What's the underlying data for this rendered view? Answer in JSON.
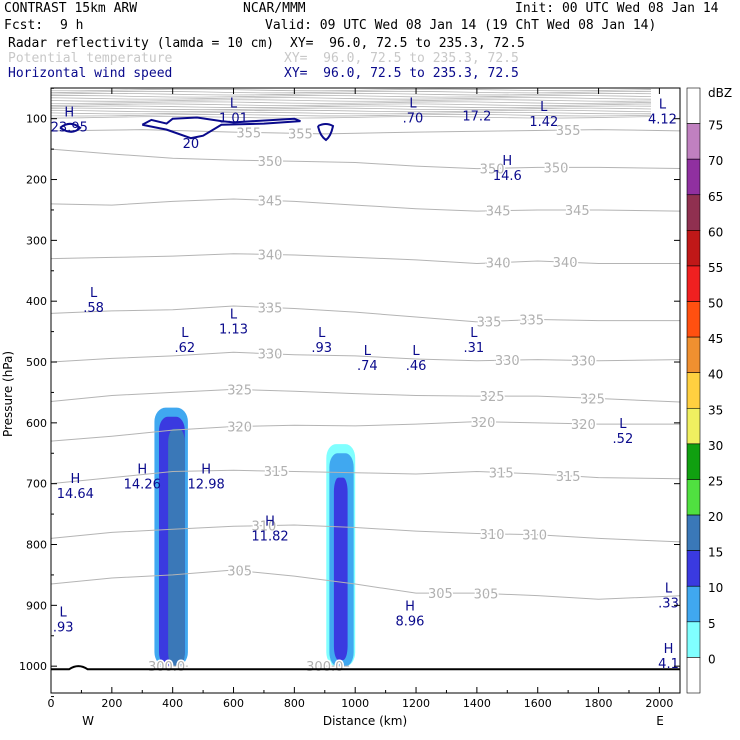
{
  "header": {
    "model": "CONTRAST 15km ARW",
    "center": "NCAR/MMM",
    "init": "Init: 00 UTC Wed 08 Jan 14",
    "fcst_label": "Fcst:",
    "fcst_value": "9 h",
    "valid": "Valid: 09 UTC Wed 08 Jan 14 (19 ChT Wed 08 Jan 14)",
    "fields": [
      {
        "name": "Radar reflectivity (lamda = 10 cm)",
        "xy": "XY=  96.0, 72.5 to 235.3, 72.5"
      },
      {
        "name": "Potential temperature",
        "xy": "XY=  96.0, 72.5 to 235.3, 72.5"
      },
      {
        "name": "Horizontal wind speed",
        "xy": "XY=  96.0, 72.5 to 235.3, 72.5"
      }
    ]
  },
  "colors": {
    "wind_contour": "#0a0a8c",
    "theta_contour": "#b4b4b4",
    "cb_labels": [
      "dBZ",
      "75",
      "70",
      "65",
      "60",
      "55",
      "50",
      "45",
      "40",
      "35",
      "30",
      "25",
      "20",
      "15",
      "10",
      "5",
      "0"
    ],
    "cb_colors": [
      "#ffffff",
      "#c080c0",
      "#9030a0",
      "#903050",
      "#c01818",
      "#f02020",
      "#ff5010",
      "#f09030",
      "#ffd040",
      "#f0f060",
      "#10a010",
      "#50e040",
      "#3a78b8",
      "#3a3ae0",
      "#40a8f0",
      "#80ffff",
      "#ffffff"
    ]
  },
  "chart_data": {
    "type": "cross-section",
    "xlabel": "Distance (km)",
    "ylabel": "Pressure (hPa)",
    "xlim": [
      0,
      2080
    ],
    "ylim": [
      1050,
      50
    ],
    "xticks": [
      "0",
      "200",
      "400",
      "600",
      "800",
      "1000",
      "1200",
      "1400",
      "1600",
      "1800",
      "2000"
    ],
    "yticks": [
      "100",
      "200",
      "300",
      "400",
      "500",
      "600",
      "700",
      "800",
      "900",
      "1000"
    ],
    "end_labels": [
      "W",
      "E"
    ],
    "theta_contours": [
      {
        "value": 355,
        "points": [
          [
            0,
            120
          ],
          [
            300,
            118
          ],
          [
            600,
            122
          ],
          [
            900,
            125
          ],
          [
            1200,
            122
          ],
          [
            1500,
            120
          ],
          [
            1800,
            118
          ],
          [
            2080,
            120
          ]
        ],
        "labels": [
          [
            650,
            "355"
          ],
          [
            820,
            "355"
          ],
          [
            1700,
            "355"
          ]
        ]
      },
      {
        "value": 350,
        "points": [
          [
            0,
            150
          ],
          [
            200,
            158
          ],
          [
            400,
            165
          ],
          [
            600,
            168
          ],
          [
            800,
            170
          ],
          [
            1000,
            172
          ],
          [
            1200,
            178
          ],
          [
            1400,
            182
          ],
          [
            1600,
            180
          ],
          [
            1800,
            180
          ],
          [
            2080,
            182
          ]
        ],
        "labels": [
          [
            720,
            "350"
          ],
          [
            1450,
            "350"
          ],
          [
            1660,
            "350"
          ]
        ]
      },
      {
        "value": 345,
        "points": [
          [
            0,
            240
          ],
          [
            200,
            242
          ],
          [
            400,
            236
          ],
          [
            600,
            232
          ],
          [
            800,
            236
          ],
          [
            1000,
            242
          ],
          [
            1200,
            248
          ],
          [
            1400,
            252
          ],
          [
            1600,
            250
          ],
          [
            1800,
            250
          ],
          [
            2080,
            252
          ]
        ],
        "labels": [
          [
            720,
            "345"
          ],
          [
            1470,
            "345"
          ],
          [
            1730,
            "345"
          ]
        ]
      },
      {
        "value": 340,
        "points": [
          [
            0,
            330
          ],
          [
            200,
            328
          ],
          [
            400,
            326
          ],
          [
            600,
            322
          ],
          [
            800,
            324
          ],
          [
            1000,
            328
          ],
          [
            1200,
            332
          ],
          [
            1400,
            338
          ],
          [
            1600,
            334
          ],
          [
            1800,
            338
          ],
          [
            2080,
            338
          ]
        ],
        "labels": [
          [
            720,
            "340"
          ],
          [
            1470,
            "340"
          ],
          [
            1690,
            "340"
          ]
        ]
      },
      {
        "value": 335,
        "points": [
          [
            0,
            420
          ],
          [
            200,
            416
          ],
          [
            400,
            414
          ],
          [
            600,
            408
          ],
          [
            800,
            412
          ],
          [
            1000,
            418
          ],
          [
            1200,
            426
          ],
          [
            1400,
            434
          ],
          [
            1600,
            430
          ],
          [
            1800,
            432
          ],
          [
            2080,
            432
          ]
        ],
        "labels": [
          [
            720,
            "335"
          ],
          [
            1440,
            "335"
          ],
          [
            1580,
            "335"
          ]
        ]
      },
      {
        "value": 330,
        "points": [
          [
            0,
            500
          ],
          [
            200,
            494
          ],
          [
            400,
            490
          ],
          [
            600,
            484
          ],
          [
            800,
            488
          ],
          [
            1000,
            490
          ],
          [
            1200,
            495
          ],
          [
            1400,
            498
          ],
          [
            1600,
            496
          ],
          [
            1800,
            498
          ],
          [
            2080,
            496
          ]
        ],
        "labels": [
          [
            720,
            "330"
          ],
          [
            1500,
            "330"
          ],
          [
            1750,
            "330"
          ]
        ]
      },
      {
        "value": 325,
        "points": [
          [
            0,
            565
          ],
          [
            200,
            555
          ],
          [
            400,
            550
          ],
          [
            600,
            545
          ],
          [
            800,
            548
          ],
          [
            1000,
            552
          ],
          [
            1200,
            555
          ],
          [
            1400,
            556
          ],
          [
            1600,
            556
          ],
          [
            1800,
            560
          ],
          [
            2080,
            566
          ]
        ],
        "labels": [
          [
            620,
            "325"
          ],
          [
            1450,
            "325"
          ],
          [
            1780,
            "325"
          ]
        ]
      },
      {
        "value": 320,
        "points": [
          [
            0,
            630
          ],
          [
            200,
            622
          ],
          [
            400,
            612
          ],
          [
            600,
            606
          ],
          [
            800,
            604
          ],
          [
            1000,
            605
          ],
          [
            1200,
            602
          ],
          [
            1400,
            598
          ],
          [
            1600,
            600
          ],
          [
            1800,
            602
          ],
          [
            2080,
            602
          ]
        ],
        "labels": [
          [
            620,
            "320"
          ],
          [
            1420,
            "320"
          ],
          [
            1750,
            "320"
          ]
        ]
      },
      {
        "value": 315,
        "points": [
          [
            0,
            700
          ],
          [
            200,
            690
          ],
          [
            400,
            680
          ],
          [
            600,
            678
          ],
          [
            800,
            680
          ],
          [
            1000,
            682
          ],
          [
            1200,
            684
          ],
          [
            1400,
            680
          ],
          [
            1600,
            684
          ],
          [
            1800,
            690
          ],
          [
            2080,
            692
          ]
        ],
        "labels": [
          [
            740,
            "315"
          ],
          [
            1480,
            "315"
          ],
          [
            1700,
            "315"
          ]
        ]
      },
      {
        "value": 310,
        "points": [
          [
            0,
            790
          ],
          [
            200,
            780
          ],
          [
            400,
            775
          ],
          [
            600,
            770
          ],
          [
            800,
            768
          ],
          [
            1000,
            772
          ],
          [
            1200,
            778
          ],
          [
            1400,
            782
          ],
          [
            1600,
            784
          ],
          [
            1800,
            790
          ],
          [
            2080,
            796
          ]
        ],
        "labels": [
          [
            700,
            "310"
          ],
          [
            1450,
            "310"
          ],
          [
            1590,
            "310"
          ]
        ]
      },
      {
        "value": 305,
        "points": [
          [
            0,
            865
          ],
          [
            200,
            855
          ],
          [
            400,
            850
          ],
          [
            600,
            842
          ],
          [
            800,
            852
          ],
          [
            1000,
            865
          ],
          [
            1200,
            880
          ],
          [
            1400,
            880
          ],
          [
            1600,
            884
          ],
          [
            1800,
            890
          ],
          [
            2080,
            884
          ]
        ],
        "labels": [
          [
            620,
            "305"
          ],
          [
            1280,
            "305"
          ],
          [
            1430,
            "305"
          ]
        ]
      },
      {
        "value": 300,
        "points": [
          [
            350,
            1000
          ],
          [
            450,
            1000
          ]
        ],
        "labels": [
          [
            380,
            "300.0"
          ]
        ]
      },
      {
        "value": 300,
        "points": [
          [
            880,
            1000
          ],
          [
            980,
            1000
          ]
        ],
        "labels": [
          [
            900,
            "300.0"
          ]
        ]
      }
    ],
    "reflectivity": [
      {
        "dbz": 10,
        "x": [
          340,
          450
        ],
        "ptop": 575,
        "pbot": 1000
      },
      {
        "dbz": 15,
        "x": [
          355,
          440
        ],
        "ptop": 590,
        "pbot": 1000
      },
      {
        "dbz": 20,
        "x": [
          385,
          440
        ],
        "ptop": 610,
        "pbot": 1000
      },
      {
        "dbz": 5,
        "x": [
          905,
          1000
        ],
        "ptop": 635,
        "pbot": 1000
      },
      {
        "dbz": 10,
        "x": [
          915,
          995
        ],
        "ptop": 650,
        "pbot": 1000
      },
      {
        "dbz": 15,
        "x": [
          930,
          975
        ],
        "ptop": 690,
        "pbot": 990
      }
    ],
    "wind_contours": [
      {
        "value": 20,
        "points": [
          [
            300,
            110
          ],
          [
            330,
            102
          ],
          [
            380,
            108
          ],
          [
            400,
            100
          ],
          [
            480,
            98
          ],
          [
            560,
            104
          ],
          [
            600,
            106
          ],
          [
            800,
            100
          ],
          [
            820,
            104
          ],
          [
            700,
            108
          ],
          [
            560,
            110
          ],
          [
            500,
            128
          ],
          [
            460,
            132
          ],
          [
            380,
            118
          ],
          [
            300,
            110
          ]
        ]
      }
    ],
    "extrema": [
      {
        "type": "H",
        "value": "23.95",
        "x": 60,
        "p": 108
      },
      {
        "type": "L",
        "value": "1.01",
        "x": 600,
        "p": 93
      },
      {
        "type": "L",
        "value": ".70",
        "x": 1190,
        "p": 93
      },
      {
        "type": "",
        "value": "17.2",
        "x": 1400,
        "p": 90
      },
      {
        "type": "L",
        "value": "1.42",
        "x": 1620,
        "p": 99
      },
      {
        "type": "L",
        "value": "4.12",
        "x": 2010,
        "p": 95
      },
      {
        "type": "H",
        "value": "14.6",
        "x": 1500,
        "p": 188
      },
      {
        "type": "L",
        "value": ".58",
        "x": 140,
        "p": 405
      },
      {
        "type": "L",
        "value": "1.13",
        "x": 600,
        "p": 440
      },
      {
        "type": "L",
        "value": ".62",
        "x": 440,
        "p": 470
      },
      {
        "type": "L",
        "value": ".93",
        "x": 890,
        "p": 470
      },
      {
        "type": "L",
        "value": ".74",
        "x": 1040,
        "p": 500
      },
      {
        "type": "L",
        "value": ".46",
        "x": 1200,
        "p": 500
      },
      {
        "type": "L",
        "value": ".31",
        "x": 1390,
        "p": 470
      },
      {
        "type": "L",
        "value": ".52",
        "x": 1880,
        "p": 620
      },
      {
        "type": "H",
        "value": "14.26",
        "x": 300,
        "p": 695
      },
      {
        "type": "H",
        "value": "12.98",
        "x": 510,
        "p": 695
      },
      {
        "type": "H",
        "value": "14.64",
        "x": 80,
        "p": 710
      },
      {
        "type": "H",
        "value": "11.82",
        "x": 720,
        "p": 780
      },
      {
        "type": "L",
        "value": ".93",
        "x": 40,
        "p": 930
      },
      {
        "type": "H",
        "value": "8.96",
        "x": 1180,
        "p": 920
      },
      {
        "type": "L",
        "value": ".33",
        "x": 2030,
        "p": 890
      },
      {
        "type": "H",
        "value": "4.1",
        "x": 2030,
        "p": 990
      }
    ]
  }
}
